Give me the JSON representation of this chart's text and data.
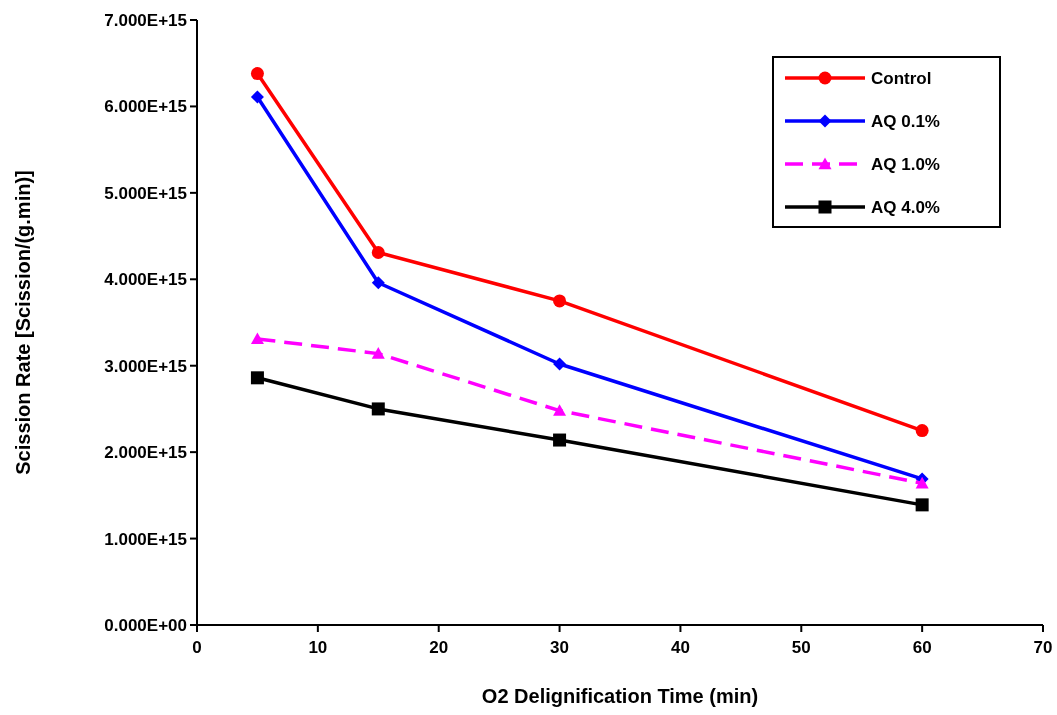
{
  "chart_data": {
    "type": "line",
    "xlabel": "O2 Delignification Time (min)",
    "ylabel": "Scission Rate [Scission/(g.min)]",
    "x": [
      5,
      15,
      30,
      60
    ],
    "series": [
      {
        "name": "Control",
        "color": "#ff0000",
        "marker": "circle",
        "line_style": "solid",
        "values": [
          6380000000000000.0,
          4310000000000000.0,
          3750000000000000.0,
          2250000000000000.0
        ]
      },
      {
        "name": "AQ 0.1%",
        "color": "#0000ff",
        "marker": "diamond",
        "line_style": "solid",
        "values": [
          6110000000000000.0,
          3960000000000000.0,
          3020000000000000.0,
          1690000000000000.0
        ]
      },
      {
        "name": "AQ 1.0%",
        "color": "#ff00ff",
        "marker": "triangle",
        "line_style": "dashed",
        "values": [
          3310000000000000.0,
          3140000000000000.0,
          2480000000000000.0,
          1640000000000000.0
        ]
      },
      {
        "name": "AQ 4.0%",
        "color": "#000000",
        "marker": "square",
        "line_style": "solid",
        "values": [
          2860000000000000.0,
          2500000000000000.0,
          2140000000000000.0,
          1390000000000000.0
        ]
      }
    ],
    "xlim": [
      0,
      70
    ],
    "xticks": [
      0,
      10,
      20,
      30,
      40,
      50,
      60,
      70
    ],
    "ylim": [
      0,
      7000000000000000.0
    ],
    "yticks": [
      {
        "value": 0,
        "label": "0.000E+00"
      },
      {
        "value": 1000000000000000.0,
        "label": "1.000E+15"
      },
      {
        "value": 2000000000000000.0,
        "label": "2.000E+15"
      },
      {
        "value": 3000000000000000.0,
        "label": "3.000E+15"
      },
      {
        "value": 4000000000000000.0,
        "label": "4.000E+15"
      },
      {
        "value": 5000000000000000.0,
        "label": "5.000E+15"
      },
      {
        "value": 6000000000000000.0,
        "label": "6.000E+15"
      },
      {
        "value": 7000000000000000.0,
        "label": "7.000E+15"
      }
    ],
    "grid": false,
    "legend": "top right"
  }
}
